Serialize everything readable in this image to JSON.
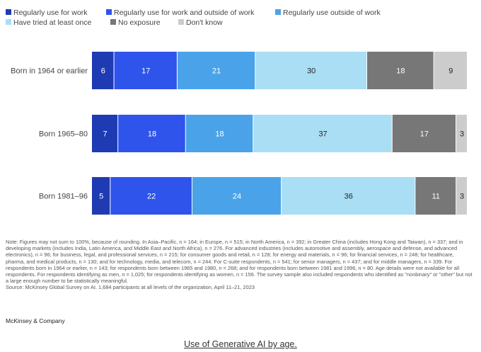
{
  "chart_data": {
    "type": "bar",
    "orientation": "horizontal",
    "stacked": true,
    "categories": [
      "Born in 1964 or earlier",
      "Born 1965–80",
      "Born 1981–96"
    ],
    "series": [
      {
        "name": "Regularly use for work",
        "color": "#1f3bb3",
        "values": [
          6,
          7,
          5
        ]
      },
      {
        "name": "Regularly use for work and outside of work",
        "color": "#2f54eb",
        "values": [
          17,
          18,
          22
        ]
      },
      {
        "name": "Regularly use outside of work",
        "color": "#4aa3e8",
        "values": [
          21,
          18,
          24
        ]
      },
      {
        "name": "Have tried at least once",
        "color": "#a9def5",
        "values": [
          30,
          37,
          36
        ]
      },
      {
        "name": "No exposure",
        "color": "#777777",
        "values": [
          18,
          17,
          11
        ]
      },
      {
        "name": "Don't know",
        "color": "#cccccc",
        "values": [
          9,
          3,
          3
        ]
      }
    ],
    "legend_position": "top-left",
    "grid": false
  },
  "note": "Note: Figures may not sum to 100%, because of rounding. In Asia–Pacific, n = 164; in Europe, n = 515; in North America, n = 392; in Greater China (includes Hong Kong and Taiwan), n = 337; and in developing markets (includes India, Latin America, and Middle East and North Africa), n = 276. For advanced industries (includes automotive and assembly, aerospace and defense, and advanced electronics), n = 96; for business, legal, and professional services, n = 215; for consumer goods and retail, n = 128; for energy and materials, n = 96; for financial services, n = 248; for healthcare, pharma, and medical products, n = 130; and for technology, media, and telecom, n = 244. For C-suite respondents, n = 541; for senior managers, n = 437; and for middle managers, n = 339. For respondents born in 1964 or earlier, n = 143; for respondents born between 1965 and 1980, n = 268; and for respondents born between 1981 and 1996, n = 80. Age details were not available for all respondents. For respondents identifying as men, n = 1,025; for respondents identifying as women, n = 156. The survey sample also included respondents who identified as \"nonbinary\" or \"other\" but not a large enough number to be statistically meaningful.",
  "source": "Source: McKinsey Global Survey on AI, 1,684 participants at all levels of the organization, April 11–21, 2023",
  "brand": "McKinsey & Company",
  "caption": "Use of Generative AI by age."
}
